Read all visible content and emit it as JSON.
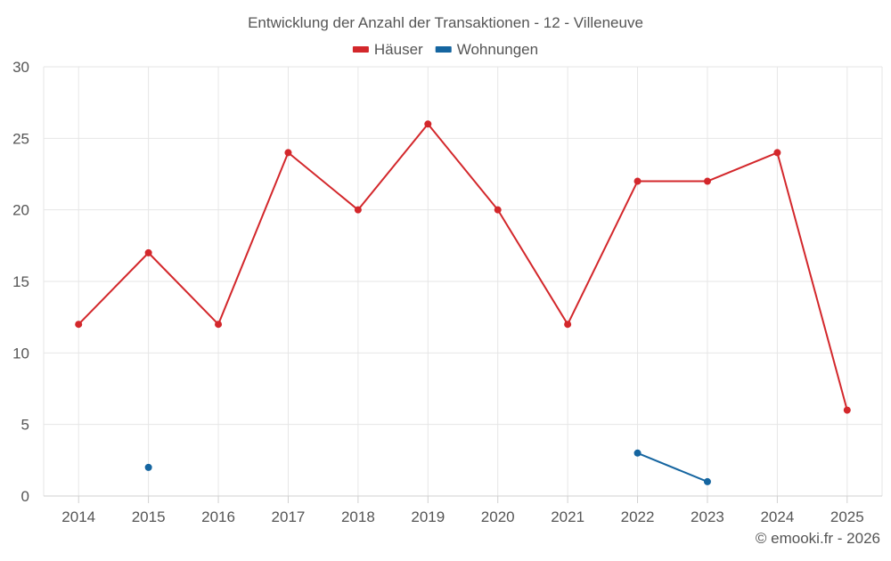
{
  "chart_data": {
    "type": "line",
    "title": "Entwicklung der Anzahl der Transaktionen - 12 - Villeneuve",
    "categories": [
      "2014",
      "2015",
      "2016",
      "2017",
      "2018",
      "2019",
      "2020",
      "2021",
      "2022",
      "2023",
      "2024",
      "2025"
    ],
    "ylim": [
      0,
      30
    ],
    "yticks": [
      0,
      5,
      10,
      15,
      20,
      25,
      30
    ],
    "grid": true,
    "legend_position": "top-center",
    "series": [
      {
        "name": "Häuser",
        "color": "#d3272b",
        "values": [
          12,
          17,
          12,
          24,
          20,
          26,
          20,
          12,
          22,
          22,
          24,
          6
        ]
      },
      {
        "name": "Wohnungen",
        "color": "#1565a0",
        "values": [
          null,
          2,
          null,
          null,
          null,
          null,
          null,
          null,
          3,
          1,
          null,
          null
        ]
      }
    ],
    "credit": "© emooki.fr - 2026"
  }
}
